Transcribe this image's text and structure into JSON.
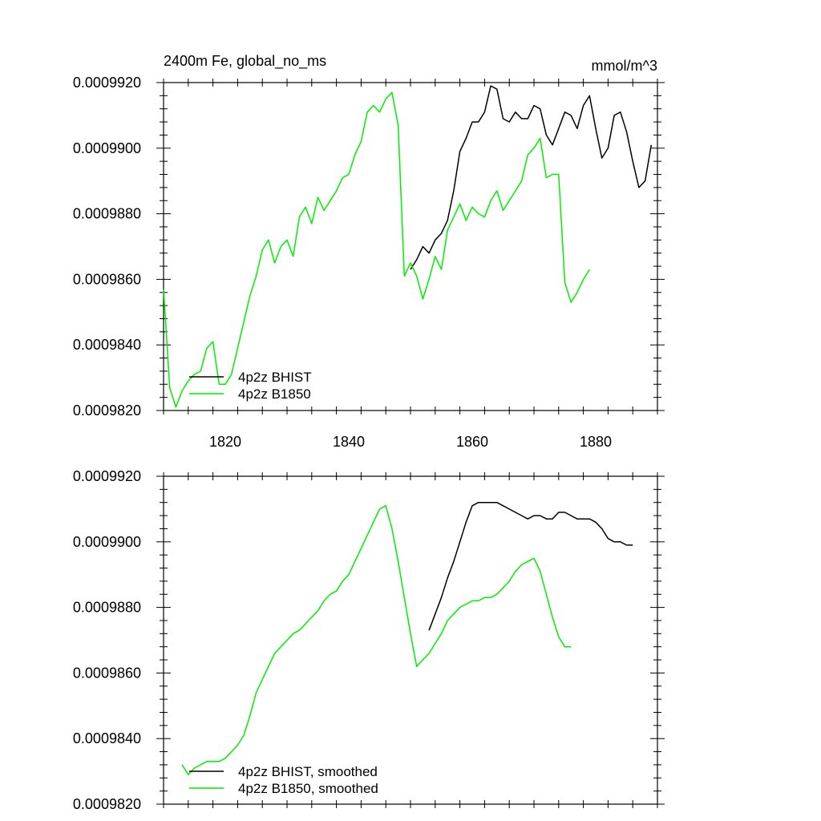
{
  "chart_data": [
    {
      "type": "line",
      "title": "2400m Fe, global_no_ms",
      "units": "mmol/m^3",
      "xlim": [
        1810,
        1890
      ],
      "ylim": [
        0.000982,
        0.000992
      ],
      "x_ticks": [
        1820,
        1840,
        1860,
        1880
      ],
      "x_tick_labels": [
        "1820",
        "1840",
        "1860",
        "1880"
      ],
      "y_ticks": [
        0.000982,
        0.000984,
        0.000986,
        0.000988,
        0.00099,
        0.000992
      ],
      "y_tick_labels": [
        "0.0009820",
        "0.0009840",
        "0.0009860",
        "0.0009880",
        "0.0009900",
        "0.0009920"
      ],
      "legend_position": "bottom-left",
      "grid": false,
      "series": [
        {
          "name": "4p2z BHIST",
          "color": "#000000",
          "x": [
            1850,
            1851,
            1852,
            1853,
            1854,
            1855,
            1856,
            1857,
            1858,
            1859,
            1860,
            1861,
            1862,
            1863,
            1864,
            1865,
            1866,
            1867,
            1868,
            1869,
            1870,
            1871,
            1872,
            1873,
            1874,
            1875,
            1876,
            1877,
            1878,
            1879,
            1880,
            1881,
            1882,
            1883,
            1884,
            1885,
            1886,
            1887,
            1888,
            1889
          ],
          "y": [
            0.0009863,
            0.0009866,
            0.000987,
            0.0009868,
            0.0009872,
            0.0009874,
            0.0009878,
            0.0009887,
            0.0009899,
            0.0009903,
            0.0009908,
            0.0009908,
            0.0009911,
            0.0009919,
            0.0009918,
            0.0009909,
            0.0009908,
            0.0009911,
            0.0009909,
            0.0009909,
            0.0009913,
            0.0009912,
            0.0009904,
            0.0009901,
            0.0009906,
            0.0009911,
            0.000991,
            0.0009906,
            0.0009913,
            0.0009916,
            0.0009906,
            0.0009897,
            0.00099,
            0.000991,
            0.0009911,
            0.0009905,
            0.0009896,
            0.0009888,
            0.000989,
            0.0009901
          ]
        },
        {
          "name": "4p2z B1850",
          "color": "#00ee00",
          "x": [
            1810,
            1811,
            1812,
            1813,
            1814,
            1815,
            1816,
            1817,
            1818,
            1819,
            1820,
            1821,
            1822,
            1823,
            1824,
            1825,
            1826,
            1827,
            1828,
            1829,
            1830,
            1831,
            1832,
            1833,
            1834,
            1835,
            1836,
            1837,
            1838,
            1839,
            1840,
            1841,
            1842,
            1843,
            1844,
            1845,
            1846,
            1847,
            1848,
            1849,
            1850,
            1851,
            1852,
            1853,
            1854,
            1855,
            1856,
            1857,
            1858,
            1859,
            1860,
            1861,
            1862,
            1863,
            1864,
            1865,
            1866,
            1867,
            1868,
            1869,
            1870,
            1871,
            1872,
            1873,
            1874,
            1875,
            1876,
            1877,
            1878,
            1879
          ],
          "y": [
            0.0009857,
            0.0009827,
            0.0009821,
            0.0009826,
            0.0009829,
            0.0009831,
            0.0009832,
            0.0009839,
            0.0009841,
            0.0009828,
            0.0009828,
            0.0009831,
            0.0009839,
            0.0009847,
            0.0009855,
            0.0009861,
            0.0009869,
            0.0009872,
            0.0009865,
            0.000987,
            0.0009872,
            0.0009867,
            0.0009879,
            0.0009882,
            0.0009877,
            0.0009885,
            0.0009881,
            0.0009884,
            0.0009887,
            0.0009891,
            0.0009892,
            0.0009898,
            0.0009902,
            0.0009911,
            0.0009913,
            0.0009911,
            0.0009915,
            0.0009917,
            0.0009907,
            0.0009861,
            0.0009865,
            0.0009861,
            0.0009854,
            0.000986,
            0.0009867,
            0.0009863,
            0.0009875,
            0.0009879,
            0.0009883,
            0.0009878,
            0.0009882,
            0.000988,
            0.0009879,
            0.0009884,
            0.0009887,
            0.0009881,
            0.0009884,
            0.0009887,
            0.000989,
            0.0009898,
            0.00099,
            0.0009903,
            0.0009891,
            0.0009892,
            0.0009892,
            0.0009859,
            0.0009853,
            0.0009856,
            0.000986,
            0.0009863
          ]
        }
      ]
    },
    {
      "type": "line",
      "title": "",
      "units": "",
      "xlim": [
        1810,
        1890
      ],
      "ylim": [
        0.000982,
        0.000992
      ],
      "x_ticks": [
        1820,
        1840,
        1860,
        1880
      ],
      "x_tick_labels": [],
      "y_ticks": [
        0.000982,
        0.000984,
        0.000986,
        0.000988,
        0.00099,
        0.000992
      ],
      "y_tick_labels": [
        "0.0009820",
        "0.0009840",
        "0.0009860",
        "0.0009880",
        "0.0009900",
        "0.0009920"
      ],
      "legend_position": "bottom-left",
      "grid": false,
      "series": [
        {
          "name": "4p2z BHIST, smoothed",
          "color": "#000000",
          "x": [
            1853,
            1854,
            1855,
            1856,
            1857,
            1858,
            1859,
            1860,
            1861,
            1862,
            1863,
            1864,
            1865,
            1866,
            1867,
            1868,
            1869,
            1870,
            1871,
            1872,
            1873,
            1874,
            1875,
            1876,
            1877,
            1878,
            1879,
            1880,
            1881,
            1882,
            1883,
            1884,
            1885,
            1886
          ],
          "y": [
            0.0009873,
            0.0009878,
            0.0009883,
            0.0009889,
            0.0009894,
            0.00099,
            0.0009906,
            0.0009911,
            0.0009912,
            0.0009912,
            0.0009912,
            0.0009912,
            0.0009911,
            0.000991,
            0.0009909,
            0.0009908,
            0.0009907,
            0.0009908,
            0.0009908,
            0.0009907,
            0.0009907,
            0.0009909,
            0.0009909,
            0.0009908,
            0.0009907,
            0.0009907,
            0.0009907,
            0.0009906,
            0.0009904,
            0.0009901,
            0.00099,
            0.00099,
            0.0009899,
            0.0009899
          ]
        },
        {
          "name": "4p2z B1850, smoothed",
          "color": "#00ee00",
          "x": [
            1813,
            1814,
            1815,
            1816,
            1817,
            1818,
            1819,
            1820,
            1821,
            1822,
            1823,
            1824,
            1825,
            1826,
            1827,
            1828,
            1829,
            1830,
            1831,
            1832,
            1833,
            1834,
            1835,
            1836,
            1837,
            1838,
            1839,
            1840,
            1841,
            1842,
            1843,
            1844,
            1845,
            1846,
            1847,
            1848,
            1849,
            1850,
            1851,
            1852,
            1853,
            1854,
            1855,
            1856,
            1857,
            1858,
            1859,
            1860,
            1861,
            1862,
            1863,
            1864,
            1865,
            1866,
            1867,
            1868,
            1869,
            1870,
            1871,
            1872,
            1873,
            1874,
            1875,
            1876
          ],
          "y": [
            0.0009832,
            0.0009829,
            0.0009831,
            0.0009832,
            0.0009833,
            0.0009833,
            0.0009833,
            0.0009834,
            0.0009836,
            0.0009838,
            0.0009841,
            0.0009847,
            0.0009854,
            0.0009858,
            0.0009862,
            0.0009866,
            0.0009868,
            0.000987,
            0.0009872,
            0.0009873,
            0.0009875,
            0.0009877,
            0.0009879,
            0.0009882,
            0.0009884,
            0.0009885,
            0.0009888,
            0.000989,
            0.0009894,
            0.0009898,
            0.0009902,
            0.0009906,
            0.000991,
            0.0009911,
            0.0009904,
            0.0009894,
            0.0009883,
            0.0009872,
            0.0009862,
            0.0009864,
            0.0009866,
            0.0009869,
            0.0009872,
            0.0009876,
            0.0009878,
            0.000988,
            0.0009881,
            0.0009882,
            0.0009882,
            0.0009883,
            0.0009883,
            0.0009884,
            0.0009886,
            0.0009888,
            0.0009891,
            0.0009893,
            0.0009894,
            0.0009895,
            0.0009891,
            0.0009884,
            0.0009877,
            0.0009871,
            0.0009868,
            0.0009868
          ]
        }
      ]
    }
  ]
}
